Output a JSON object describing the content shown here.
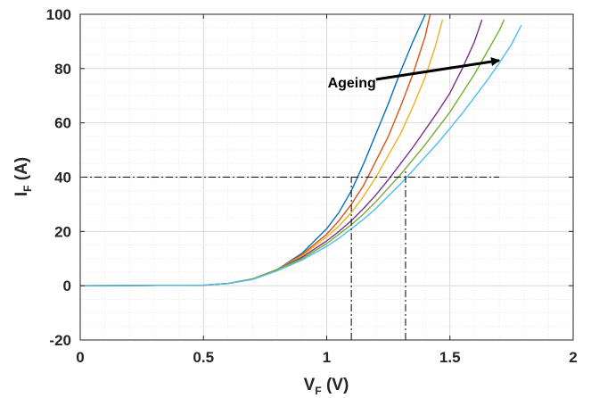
{
  "chart_data": {
    "type": "line",
    "xlabel": {
      "main": "V",
      "sub": "F",
      "unit": " (V)"
    },
    "ylabel": {
      "main": "I",
      "sub": "F",
      "unit": " (A)"
    },
    "xlim": [
      0,
      2
    ],
    "ylim": [
      -20,
      100
    ],
    "xticks": [
      0,
      0.5,
      1,
      1.5,
      2
    ],
    "xtick_labels": [
      "0",
      "0.5",
      "1",
      "1.5",
      "2"
    ],
    "yticks": [
      -20,
      0,
      20,
      40,
      60,
      80,
      100
    ],
    "ytick_labels": [
      "-20",
      "0",
      "20",
      "40",
      "60",
      "80",
      "100"
    ],
    "grid": true,
    "minor_grid": true,
    "legend": false,
    "series": [
      {
        "color": "#0072BD",
        "x": [
          0,
          0.5,
          0.6,
          0.7,
          0.8,
          0.9,
          1.0,
          1.05,
          1.1,
          1.15,
          1.2,
          1.25,
          1.3,
          1.35,
          1.4
        ],
        "y": [
          0,
          0.2,
          0.8,
          2.5,
          6,
          12,
          21,
          27,
          35,
          45,
          56,
          67,
          79,
          90,
          100
        ]
      },
      {
        "color": "#D95319",
        "x": [
          0,
          0.5,
          0.6,
          0.7,
          0.8,
          0.9,
          1.0,
          1.05,
          1.1,
          1.15,
          1.2,
          1.25,
          1.3,
          1.35,
          1.4,
          1.42
        ],
        "y": [
          0,
          0.2,
          0.8,
          2.5,
          6,
          11.5,
          19,
          24,
          30,
          37,
          46,
          55,
          66,
          78,
          92,
          100
        ]
      },
      {
        "color": "#EDB120",
        "x": [
          0,
          0.5,
          0.6,
          0.7,
          0.8,
          0.9,
          1.0,
          1.05,
          1.1,
          1.15,
          1.2,
          1.25,
          1.3,
          1.35,
          1.4,
          1.44,
          1.47
        ],
        "y": [
          0,
          0.2,
          0.8,
          2.5,
          6,
          11,
          18,
          22,
          27,
          33,
          40,
          48,
          56,
          66,
          77,
          88,
          98
        ]
      },
      {
        "color": "#7E2F8E",
        "x": [
          0,
          0.5,
          0.6,
          0.7,
          0.8,
          0.9,
          1.0,
          1.05,
          1.1,
          1.15,
          1.2,
          1.25,
          1.3,
          1.35,
          1.4,
          1.45,
          1.5,
          1.55,
          1.6,
          1.63
        ],
        "y": [
          0,
          0.2,
          0.8,
          2.5,
          6,
          10.5,
          16.5,
          20,
          24,
          28.5,
          33.5,
          39,
          45,
          51,
          57.5,
          64,
          71,
          80,
          90,
          98
        ]
      },
      {
        "color": "#77AC30",
        "x": [
          0,
          0.5,
          0.6,
          0.7,
          0.8,
          0.9,
          1.0,
          1.05,
          1.1,
          1.15,
          1.2,
          1.25,
          1.3,
          1.35,
          1.4,
          1.45,
          1.5,
          1.55,
          1.6,
          1.65,
          1.7,
          1.72
        ],
        "y": [
          0,
          0.2,
          0.8,
          2.5,
          6,
          10,
          15.5,
          19,
          22.5,
          26.5,
          31,
          36,
          41,
          46.5,
          52,
          58,
          64,
          71,
          78,
          86,
          94,
          98
        ]
      },
      {
        "color": "#4DBEEE",
        "x": [
          0,
          0.5,
          0.6,
          0.7,
          0.8,
          0.9,
          1.0,
          1.05,
          1.1,
          1.15,
          1.2,
          1.25,
          1.3,
          1.35,
          1.4,
          1.45,
          1.5,
          1.55,
          1.6,
          1.65,
          1.7,
          1.75,
          1.79
        ],
        "y": [
          0,
          0.2,
          0.8,
          2.3,
          5.5,
          9.5,
          14.5,
          17.5,
          21,
          24.5,
          28.5,
          33,
          37.5,
          42.5,
          47.5,
          52.5,
          58,
          63.5,
          69.5,
          75.5,
          82,
          89,
          96
        ]
      }
    ],
    "reference_lines": {
      "horizontal": {
        "y": 40,
        "x_from": 0,
        "x_to": 1.7
      },
      "vertical": [
        {
          "x": 1.1,
          "y_from": -20,
          "y_to": 40
        },
        {
          "x": 1.32,
          "y_from": -20,
          "y_to": 43
        }
      ],
      "color": "#000000"
    },
    "annotation": {
      "text": "Ageing",
      "text_pos": [
        1.2,
        75
      ],
      "arrow_from": [
        1.2,
        76
      ],
      "arrow_to": [
        1.7,
        83
      ]
    }
  }
}
